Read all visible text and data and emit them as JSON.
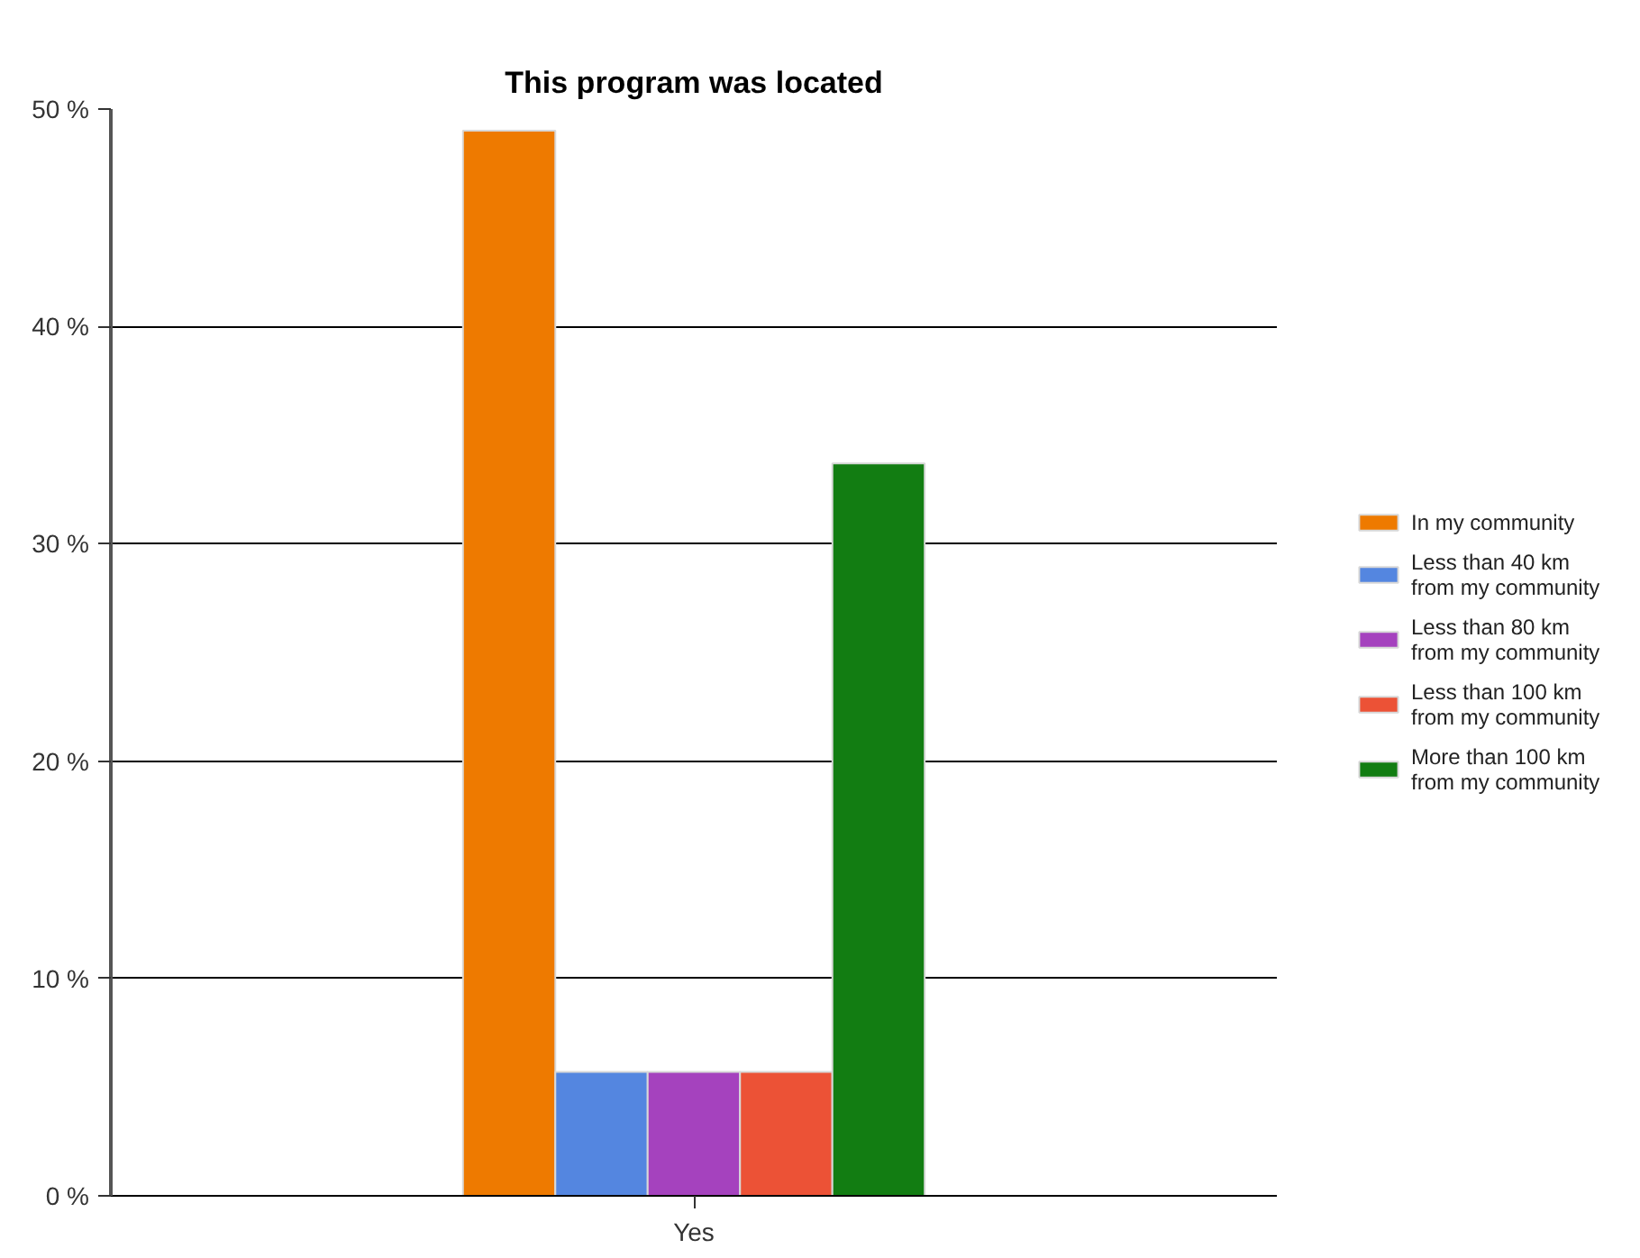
{
  "chart_data": {
    "type": "bar",
    "title": "This program was located",
    "categories": [
      "Yes"
    ],
    "series": [
      {
        "name": "In my community",
        "color": "#ee7a00",
        "values": [
          49.0
        ]
      },
      {
        "name": "Less than 40 km from my community",
        "color": "#5486e0",
        "values": [
          5.7
        ]
      },
      {
        "name": "Less than 80 km from my community",
        "color": "#a542be",
        "values": [
          5.7
        ]
      },
      {
        "name": "Less than 100 km from my community",
        "color": "#ec5236",
        "values": [
          5.7
        ]
      },
      {
        "name": "More than 100 km from my community",
        "color": "#127d12",
        "values": [
          33.7
        ]
      }
    ],
    "ylim": [
      0,
      50
    ],
    "yticks": [
      {
        "value": 0,
        "label": "0 %"
      },
      {
        "value": 10,
        "label": "10 %"
      },
      {
        "value": 20,
        "label": "20 %"
      },
      {
        "value": 30,
        "label": "30 %"
      },
      {
        "value": 40,
        "label": "40 %"
      },
      {
        "value": 50,
        "label": "50 %"
      }
    ],
    "grid": "y",
    "legend": "right"
  }
}
